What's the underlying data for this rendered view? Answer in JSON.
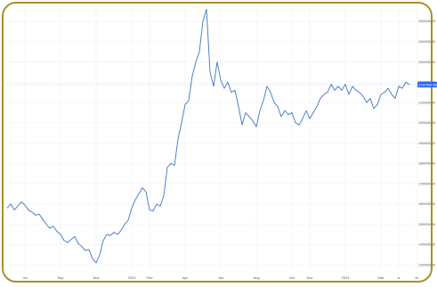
{
  "chart_data": {
    "type": "line",
    "title": "",
    "xlabel": "",
    "ylabel": "",
    "grid": true,
    "colors": {
      "line": "#3d75c2",
      "badge": "#2962ff",
      "frame": "#a8912a",
      "grid": "#eef1f5"
    },
    "current_price": {
      "label": "2187996.96",
      "value": 2187996.96
    },
    "ylim": [
      1270000,
      2570000
    ],
    "y_ticks": [
      1300000,
      1400000,
      1500000,
      1600000,
      1700000,
      1800000,
      1900000,
      2000000,
      2100000,
      2200000,
      2300000,
      2400000,
      2500000
    ],
    "y_tick_labels": [
      "1300000.00",
      "1400000.00",
      "1500000.00",
      "1600000.00",
      "1700000.00",
      "1800000.00",
      "1900000.00",
      "2000000.00",
      "2100000.00",
      "2200000.00",
      "2300000.00",
      "2400000.00",
      "2500000.00"
    ],
    "x_ticks": [
      {
        "label": "Jul",
        "x": 1
      },
      {
        "label": "Sep",
        "x": 3
      },
      {
        "label": "Nov",
        "x": 5
      },
      {
        "label": "2023",
        "x": 7
      },
      {
        "label": "Feb",
        "x": 8
      },
      {
        "label": "Apr",
        "x": 10
      },
      {
        "label": "Jun",
        "x": 12
      },
      {
        "label": "Aug",
        "x": 14
      },
      {
        "label": "Oct",
        "x": 16
      },
      {
        "label": "Nov",
        "x": 17
      },
      {
        "label": "2024",
        "x": 19
      },
      {
        "label": "Mar",
        "x": 21
      },
      {
        "label": "A",
        "x": 22
      },
      {
        "label": "Ju",
        "x": 23
      }
    ],
    "series": [
      {
        "points": [
          [
            0.0,
            1580000
          ],
          [
            0.2,
            1600000
          ],
          [
            0.4,
            1570000
          ],
          [
            0.6,
            1590000
          ],
          [
            0.8,
            1610000
          ],
          [
            1.0,
            1595000
          ],
          [
            1.2,
            1570000
          ],
          [
            1.4,
            1560000
          ],
          [
            1.6,
            1545000
          ],
          [
            1.8,
            1550000
          ],
          [
            2.0,
            1525000
          ],
          [
            2.2,
            1500000
          ],
          [
            2.4,
            1480000
          ],
          [
            2.6,
            1490000
          ],
          [
            2.8,
            1465000
          ],
          [
            3.0,
            1450000
          ],
          [
            3.2,
            1420000
          ],
          [
            3.4,
            1410000
          ],
          [
            3.6,
            1425000
          ],
          [
            3.8,
            1440000
          ],
          [
            4.0,
            1405000
          ],
          [
            4.2,
            1390000
          ],
          [
            4.4,
            1370000
          ],
          [
            4.6,
            1375000
          ],
          [
            4.8,
            1330000
          ],
          [
            5.0,
            1310000
          ],
          [
            5.2,
            1350000
          ],
          [
            5.4,
            1420000
          ],
          [
            5.6,
            1450000
          ],
          [
            5.8,
            1445000
          ],
          [
            6.0,
            1460000
          ],
          [
            6.2,
            1450000
          ],
          [
            6.4,
            1470000
          ],
          [
            6.6,
            1500000
          ],
          [
            6.8,
            1520000
          ],
          [
            7.0,
            1580000
          ],
          [
            7.2,
            1620000
          ],
          [
            7.4,
            1650000
          ],
          [
            7.6,
            1680000
          ],
          [
            7.8,
            1660000
          ],
          [
            8.0,
            1570000
          ],
          [
            8.2,
            1565000
          ],
          [
            8.4,
            1600000
          ],
          [
            8.6,
            1590000
          ],
          [
            8.8,
            1640000
          ],
          [
            9.0,
            1780000
          ],
          [
            9.2,
            1800000
          ],
          [
            9.4,
            1790000
          ],
          [
            9.6,
            1920000
          ],
          [
            9.8,
            2000000
          ],
          [
            10.0,
            2090000
          ],
          [
            10.2,
            2110000
          ],
          [
            10.4,
            2230000
          ],
          [
            10.6,
            2300000
          ],
          [
            10.8,
            2350000
          ],
          [
            11.0,
            2500000
          ],
          [
            11.2,
            2560000
          ],
          [
            11.4,
            2250000
          ],
          [
            11.6,
            2180000
          ],
          [
            11.8,
            2300000
          ],
          [
            12.0,
            2210000
          ],
          [
            12.2,
            2170000
          ],
          [
            12.4,
            2200000
          ],
          [
            12.6,
            2150000
          ],
          [
            12.8,
            2160000
          ],
          [
            13.0,
            2080000
          ],
          [
            13.2,
            1990000
          ],
          [
            13.4,
            2050000
          ],
          [
            13.6,
            2030000
          ],
          [
            13.8,
            2010000
          ],
          [
            14.0,
            1980000
          ],
          [
            14.2,
            2060000
          ],
          [
            14.4,
            2110000
          ],
          [
            14.6,
            2180000
          ],
          [
            14.8,
            2150000
          ],
          [
            15.0,
            2100000
          ],
          [
            15.2,
            2080000
          ],
          [
            15.4,
            2030000
          ],
          [
            15.6,
            2060000
          ],
          [
            15.8,
            2040000
          ],
          [
            16.0,
            2050000
          ],
          [
            16.2,
            2000000
          ],
          [
            16.4,
            1990000
          ],
          [
            16.6,
            2020000
          ],
          [
            16.8,
            2060000
          ],
          [
            17.0,
            2020000
          ],
          [
            17.2,
            2050000
          ],
          [
            17.4,
            2080000
          ],
          [
            17.6,
            2120000
          ],
          [
            17.8,
            2140000
          ],
          [
            18.0,
            2150000
          ],
          [
            18.2,
            2190000
          ],
          [
            18.4,
            2160000
          ],
          [
            18.6,
            2180000
          ],
          [
            18.8,
            2160000
          ],
          [
            19.0,
            2190000
          ],
          [
            19.2,
            2140000
          ],
          [
            19.4,
            2180000
          ],
          [
            19.6,
            2160000
          ],
          [
            19.8,
            2150000
          ],
          [
            20.0,
            2130000
          ],
          [
            20.2,
            2100000
          ],
          [
            20.4,
            2120000
          ],
          [
            20.6,
            2070000
          ],
          [
            20.8,
            2090000
          ],
          [
            21.0,
            2140000
          ],
          [
            21.2,
            2150000
          ],
          [
            21.4,
            2170000
          ],
          [
            21.6,
            2140000
          ],
          [
            21.8,
            2120000
          ],
          [
            22.0,
            2180000
          ],
          [
            22.2,
            2170000
          ],
          [
            22.4,
            2200000
          ],
          [
            22.6,
            2188000
          ]
        ]
      }
    ]
  }
}
